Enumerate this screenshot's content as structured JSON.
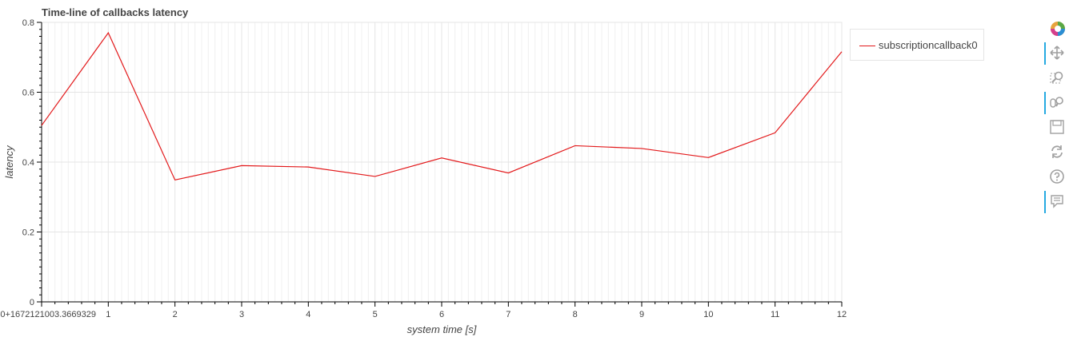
{
  "chart_data": {
    "type": "line",
    "title": "Time-line of callbacks latency",
    "xlabel": "system time [s]",
    "ylabel": "latency",
    "x_offset_label": "0+1672121003.3669329",
    "xlim": [
      0,
      12
    ],
    "ylim": [
      0,
      0.8
    ],
    "x_ticks": [
      0,
      1,
      2,
      3,
      4,
      5,
      6,
      7,
      8,
      9,
      10,
      11,
      12
    ],
    "x_tick_labels": [
      "0+1672121003.3669329",
      "1",
      "2",
      "3",
      "4",
      "5",
      "6",
      "7",
      "8",
      "9",
      "10",
      "11",
      "12"
    ],
    "y_ticks": [
      0,
      0.2,
      0.4,
      0.6,
      0.8
    ],
    "y_tick_labels": [
      "0",
      "0.2",
      "0.4",
      "0.6",
      "0.8"
    ],
    "grid": true,
    "legend_position": "right",
    "series": [
      {
        "name": "subscriptioncallback0",
        "color": "#e31a1c",
        "x": [
          0,
          1,
          2,
          3,
          4,
          5,
          6,
          7,
          8,
          9,
          10,
          11,
          12
        ],
        "y": [
          0.505,
          0.77,
          0.349,
          0.39,
          0.386,
          0.359,
          0.412,
          0.369,
          0.447,
          0.439,
          0.413,
          0.484,
          0.716
        ]
      }
    ]
  },
  "toolbar": {
    "tools": [
      {
        "icon": "bokeh-logo-icon",
        "active": false
      },
      {
        "icon": "pan-icon",
        "active": true
      },
      {
        "icon": "box-zoom-icon",
        "active": false
      },
      {
        "icon": "wheel-zoom-icon",
        "active": true
      },
      {
        "icon": "save-icon",
        "active": false
      },
      {
        "icon": "reset-icon",
        "active": false
      },
      {
        "icon": "help-icon",
        "active": false
      },
      {
        "icon": "hover-icon",
        "active": true
      }
    ]
  }
}
